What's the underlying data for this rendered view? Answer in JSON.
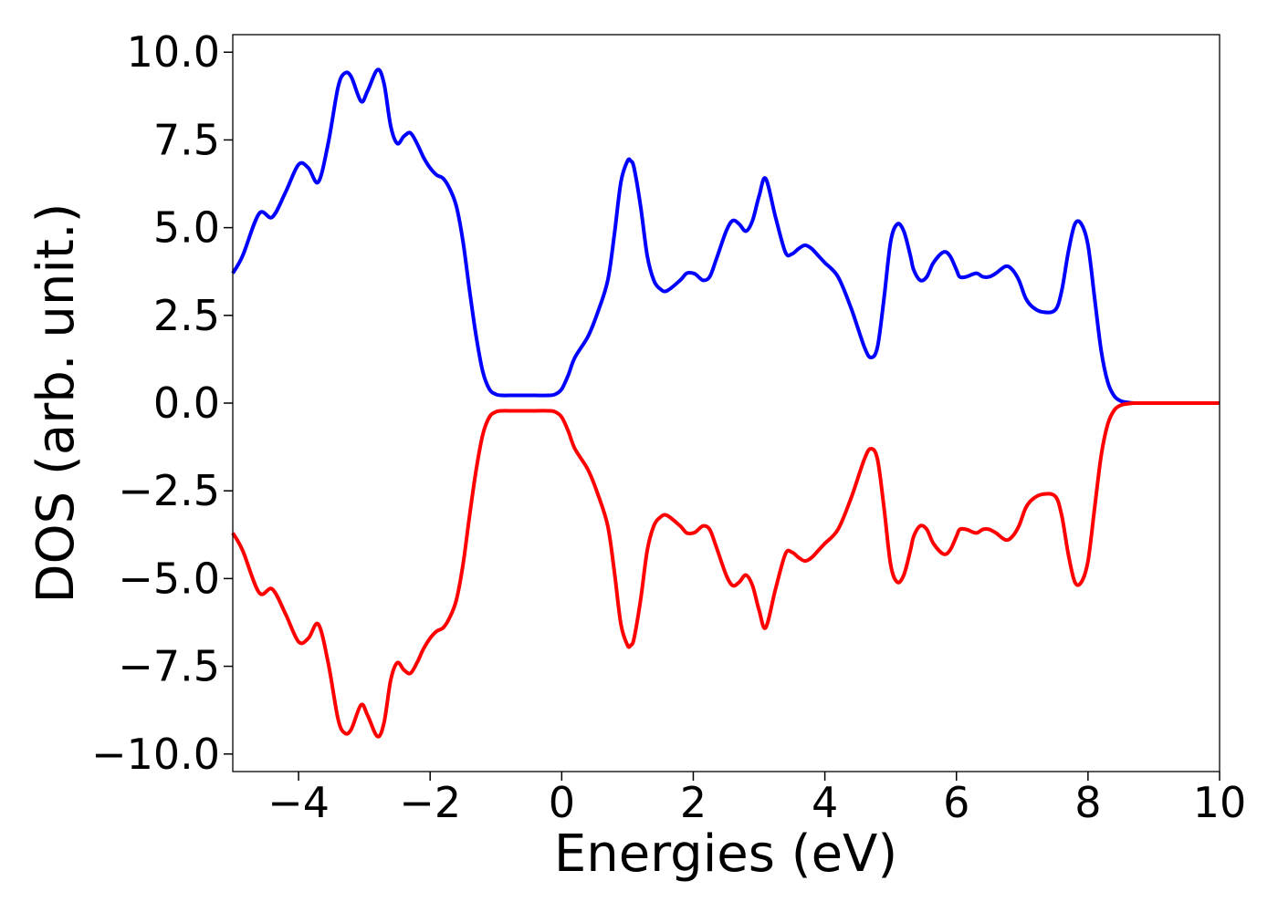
{
  "chart_data": {
    "type": "line",
    "title": "",
    "xlabel": "Energies (eV)",
    "ylabel": "DOS (arb. unit.)",
    "xlim": [
      -5,
      10
    ],
    "ylim": [
      -10.5,
      10.5
    ],
    "xticks": [
      -4,
      -2,
      0,
      2,
      4,
      6,
      8,
      10
    ],
    "xtick_labels": [
      "−4",
      "−2",
      "0",
      "2",
      "4",
      "6",
      "8",
      "10"
    ],
    "yticks": [
      10.0,
      7.5,
      5.0,
      2.5,
      0.0,
      -2.5,
      -5.0,
      -7.5,
      -10.0
    ],
    "ytick_labels": [
      "10.0",
      "7.5",
      "5.0",
      "2.5",
      "0.0",
      "−2.5",
      "−5.0",
      "−7.5",
      "−10.0"
    ],
    "grid": false,
    "legend": "none",
    "series": [
      {
        "color": "#0000ff",
        "x": [
          -5.0,
          -4.85,
          -4.6,
          -4.4,
          -4.2,
          -4.0,
          -3.85,
          -3.7,
          -3.55,
          -3.4,
          -3.3,
          -3.2,
          -3.05,
          -2.95,
          -2.8,
          -2.7,
          -2.6,
          -2.5,
          -2.4,
          -2.3,
          -2.2,
          -2.1,
          -2.0,
          -1.9,
          -1.8,
          -1.7,
          -1.6,
          -1.5,
          -1.4,
          -1.3,
          -1.2,
          -1.1,
          -1.0,
          -0.9,
          -0.8,
          -0.6,
          -0.4,
          -0.2,
          -0.1,
          0.0,
          0.1,
          0.2,
          0.4,
          0.55,
          0.7,
          0.8,
          0.9,
          1.0,
          1.05,
          1.1,
          1.2,
          1.3,
          1.4,
          1.5,
          1.6,
          1.8,
          1.9,
          2.0,
          2.05,
          2.15,
          2.25,
          2.35,
          2.5,
          2.6,
          2.7,
          2.8,
          2.9,
          3.0,
          3.1,
          3.25,
          3.4,
          3.5,
          3.6,
          3.7,
          3.8,
          3.9,
          4.0,
          4.2,
          4.4,
          4.6,
          4.7,
          4.8,
          4.9,
          5.0,
          5.1,
          5.2,
          5.3,
          5.35,
          5.45,
          5.55,
          5.65,
          5.8,
          5.9,
          6.0,
          6.05,
          6.15,
          6.3,
          6.4,
          6.5,
          6.6,
          6.75,
          6.85,
          6.95,
          7.05,
          7.15,
          7.3,
          7.5,
          7.6,
          7.7,
          7.8,
          7.9,
          8.0,
          8.1,
          8.2,
          8.3,
          8.4,
          8.5,
          8.6,
          8.7,
          8.8,
          9.0,
          9.5,
          10.0
        ],
        "y": [
          3.7,
          4.2,
          5.4,
          5.3,
          6.0,
          6.8,
          6.7,
          6.3,
          7.4,
          9.0,
          9.4,
          9.3,
          8.6,
          8.9,
          9.5,
          9.1,
          7.9,
          7.4,
          7.6,
          7.7,
          7.4,
          7.0,
          6.7,
          6.5,
          6.4,
          6.1,
          5.6,
          4.6,
          3.2,
          1.9,
          0.9,
          0.4,
          0.25,
          0.22,
          0.22,
          0.22,
          0.22,
          0.22,
          0.25,
          0.4,
          0.8,
          1.3,
          1.9,
          2.6,
          3.5,
          4.8,
          6.3,
          6.9,
          6.9,
          6.7,
          5.6,
          4.2,
          3.5,
          3.25,
          3.2,
          3.5,
          3.7,
          3.7,
          3.65,
          3.5,
          3.6,
          4.1,
          4.9,
          5.2,
          5.1,
          4.9,
          5.2,
          5.9,
          6.4,
          5.3,
          4.3,
          4.25,
          4.4,
          4.5,
          4.4,
          4.2,
          4.0,
          3.6,
          2.7,
          1.6,
          1.3,
          1.6,
          3.0,
          4.6,
          5.1,
          4.9,
          4.2,
          3.8,
          3.5,
          3.6,
          4.0,
          4.3,
          4.2,
          3.8,
          3.6,
          3.6,
          3.7,
          3.6,
          3.6,
          3.7,
          3.9,
          3.8,
          3.5,
          3.0,
          2.75,
          2.6,
          2.65,
          3.2,
          4.3,
          5.1,
          5.1,
          4.5,
          3.0,
          1.5,
          0.6,
          0.2,
          0.06,
          0.02,
          0.0,
          0.0,
          0.0,
          0.0,
          0.0
        ]
      },
      {
        "color": "#ff0000",
        "x": [
          -5.0,
          -4.85,
          -4.6,
          -4.4,
          -4.2,
          -4.0,
          -3.85,
          -3.7,
          -3.55,
          -3.4,
          -3.3,
          -3.2,
          -3.05,
          -2.95,
          -2.8,
          -2.7,
          -2.6,
          -2.5,
          -2.4,
          -2.3,
          -2.2,
          -2.1,
          -2.0,
          -1.9,
          -1.8,
          -1.7,
          -1.6,
          -1.5,
          -1.4,
          -1.3,
          -1.2,
          -1.1,
          -1.0,
          -0.9,
          -0.8,
          -0.6,
          -0.4,
          -0.2,
          -0.1,
          0.0,
          0.1,
          0.2,
          0.4,
          0.55,
          0.7,
          0.8,
          0.9,
          1.0,
          1.05,
          1.1,
          1.2,
          1.3,
          1.4,
          1.5,
          1.6,
          1.8,
          1.9,
          2.0,
          2.05,
          2.15,
          2.25,
          2.35,
          2.5,
          2.6,
          2.7,
          2.8,
          2.9,
          3.0,
          3.1,
          3.25,
          3.4,
          3.5,
          3.6,
          3.7,
          3.8,
          3.9,
          4.0,
          4.2,
          4.4,
          4.6,
          4.7,
          4.8,
          4.9,
          5.0,
          5.1,
          5.2,
          5.3,
          5.35,
          5.45,
          5.55,
          5.65,
          5.8,
          5.9,
          6.0,
          6.05,
          6.15,
          6.3,
          6.4,
          6.5,
          6.6,
          6.75,
          6.85,
          6.95,
          7.05,
          7.15,
          7.3,
          7.5,
          7.6,
          7.7,
          7.8,
          7.9,
          8.0,
          8.1,
          8.2,
          8.3,
          8.4,
          8.5,
          8.6,
          8.7,
          8.8,
          9.0,
          9.5,
          10.0
        ],
        "y": [
          -3.7,
          -4.2,
          -5.4,
          -5.3,
          -6.0,
          -6.8,
          -6.7,
          -6.3,
          -7.4,
          -9.0,
          -9.4,
          -9.3,
          -8.6,
          -8.9,
          -9.5,
          -9.1,
          -7.9,
          -7.4,
          -7.6,
          -7.7,
          -7.4,
          -7.0,
          -6.7,
          -6.5,
          -6.4,
          -6.1,
          -5.6,
          -4.6,
          -3.2,
          -1.9,
          -0.9,
          -0.4,
          -0.25,
          -0.22,
          -0.22,
          -0.22,
          -0.22,
          -0.22,
          -0.25,
          -0.4,
          -0.8,
          -1.3,
          -1.9,
          -2.6,
          -3.5,
          -4.8,
          -6.3,
          -6.9,
          -6.9,
          -6.7,
          -5.6,
          -4.2,
          -3.5,
          -3.25,
          -3.2,
          -3.5,
          -3.7,
          -3.7,
          -3.65,
          -3.5,
          -3.6,
          -4.1,
          -4.9,
          -5.2,
          -5.1,
          -4.9,
          -5.2,
          -5.9,
          -6.4,
          -5.3,
          -4.3,
          -4.25,
          -4.4,
          -4.5,
          -4.4,
          -4.2,
          -4.0,
          -3.6,
          -2.7,
          -1.6,
          -1.3,
          -1.6,
          -3.0,
          -4.6,
          -5.1,
          -4.9,
          -4.2,
          -3.8,
          -3.5,
          -3.6,
          -4.0,
          -4.3,
          -4.2,
          -3.8,
          -3.6,
          -3.6,
          -3.7,
          -3.6,
          -3.6,
          -3.7,
          -3.9,
          -3.8,
          -3.5,
          -3.0,
          -2.75,
          -2.6,
          -2.65,
          -3.2,
          -4.3,
          -5.1,
          -5.1,
          -4.5,
          -3.0,
          -1.5,
          -0.6,
          -0.2,
          -0.06,
          -0.02,
          0.0,
          0.0,
          0.0,
          0.0,
          0.0
        ]
      }
    ]
  }
}
